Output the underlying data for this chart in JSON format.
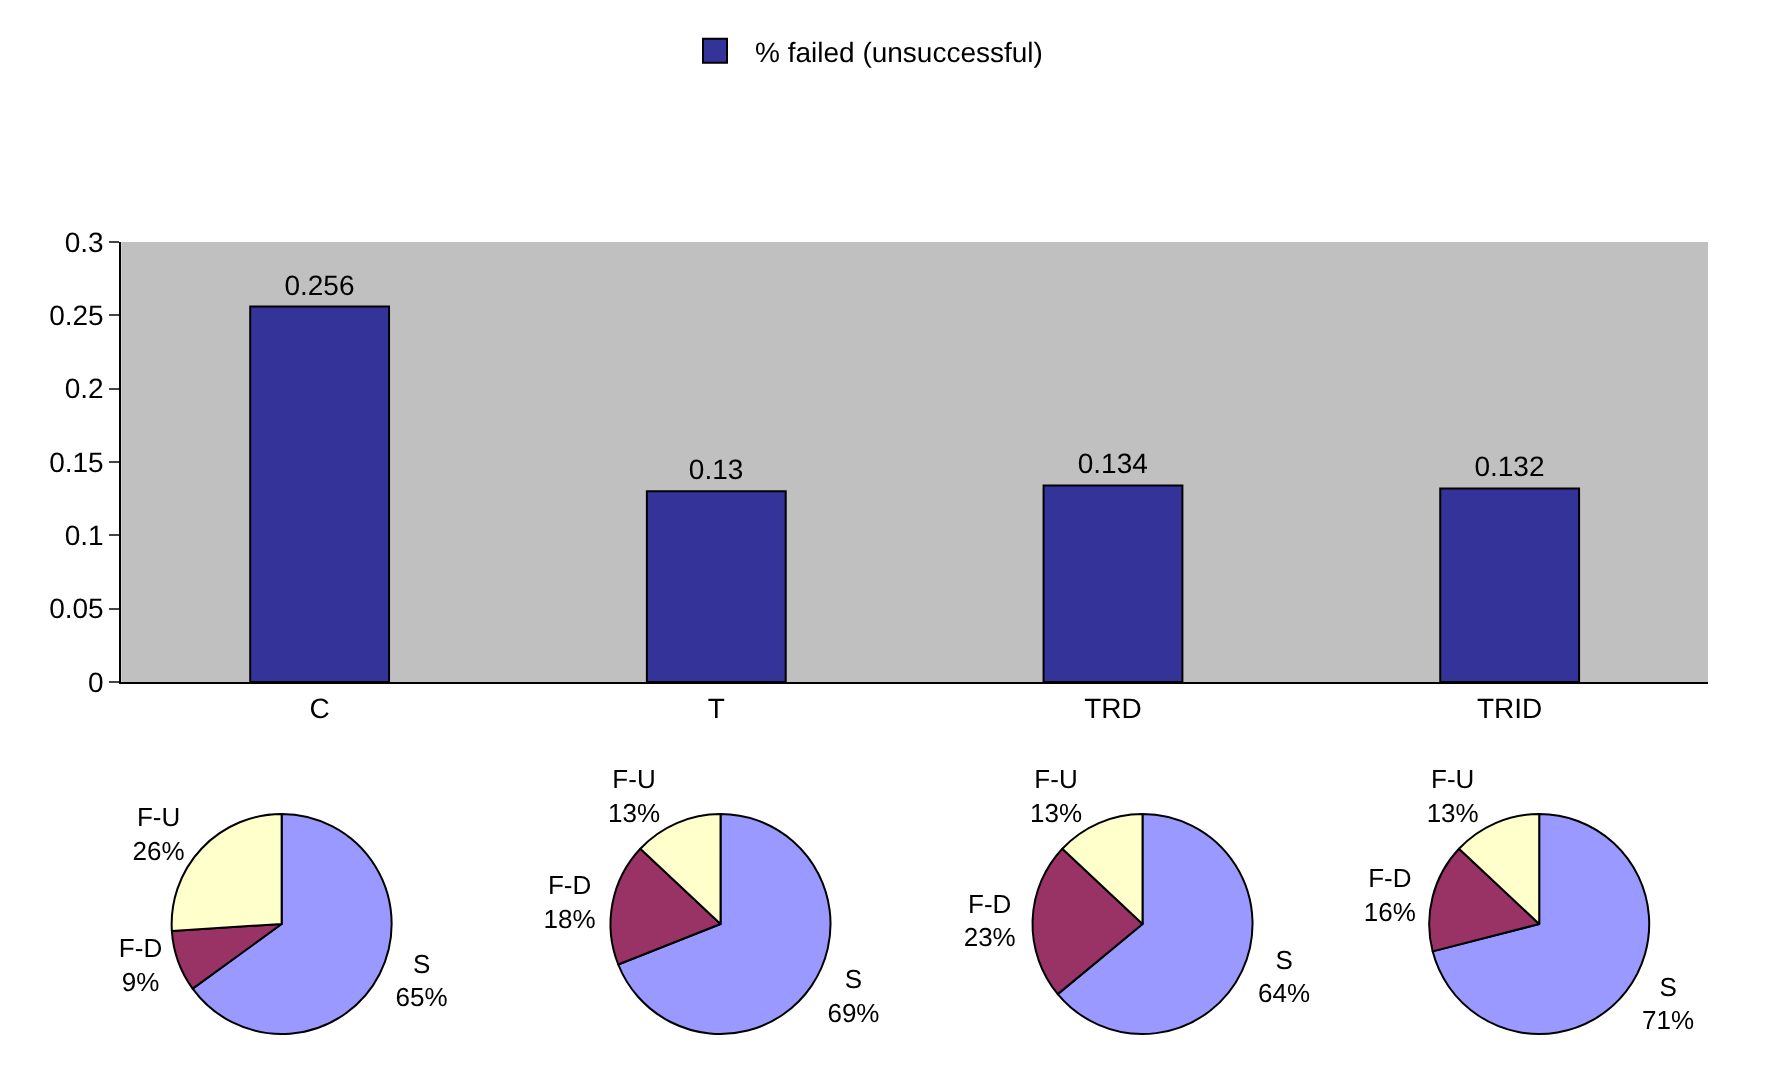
{
  "chart_data": [
    {
      "type": "bar",
      "categories": [
        "C",
        "T",
        "TRD",
        "TRID"
      ],
      "series": [
        {
          "name": "% failed (unsuccessful)",
          "color": "#333399",
          "values": [
            0.256,
            0.13,
            0.134,
            0.132
          ]
        }
      ],
      "ylim": [
        0,
        0.3
      ],
      "yticks": [
        0,
        {
          "value": 0.05,
          "label": "0.05"
        },
        0.1,
        {
          "value": 0.15,
          "label": "0.15"
        },
        0.2,
        {
          "value": 0.25,
          "label": "0.25"
        },
        0.3
      ],
      "data_labels": true,
      "grid": false,
      "legend": "top"
    },
    {
      "type": "pie",
      "categories": [
        "S",
        "F-D",
        "F-U"
      ],
      "values": [
        65,
        9,
        26
      ],
      "value_labels": [
        "65%",
        "9%",
        "26%"
      ],
      "colors": [
        "#9999ff",
        "#993366",
        "#ffffcc"
      ]
    },
    {
      "type": "pie",
      "categories": [
        "S",
        "F-D",
        "F-U"
      ],
      "values": [
        69,
        18,
        13
      ],
      "value_labels": [
        "69%",
        "18%",
        "13%"
      ],
      "colors": [
        "#9999ff",
        "#993366",
        "#ffffcc"
      ]
    },
    {
      "type": "pie",
      "categories": [
        "S",
        "F-D",
        "F-U"
      ],
      "values": [
        64,
        23,
        13
      ],
      "value_labels": [
        "64%",
        "23%",
        "13%"
      ],
      "colors": [
        "#9999ff",
        "#993366",
        "#ffffcc"
      ]
    },
    {
      "type": "pie",
      "categories": [
        "S",
        "F-D",
        "F-U"
      ],
      "values": [
        71,
        16,
        13
      ],
      "value_labels": [
        "71%",
        "16%",
        "13%"
      ],
      "colors": [
        "#9999ff",
        "#993366",
        "#ffffcc"
      ]
    }
  ]
}
